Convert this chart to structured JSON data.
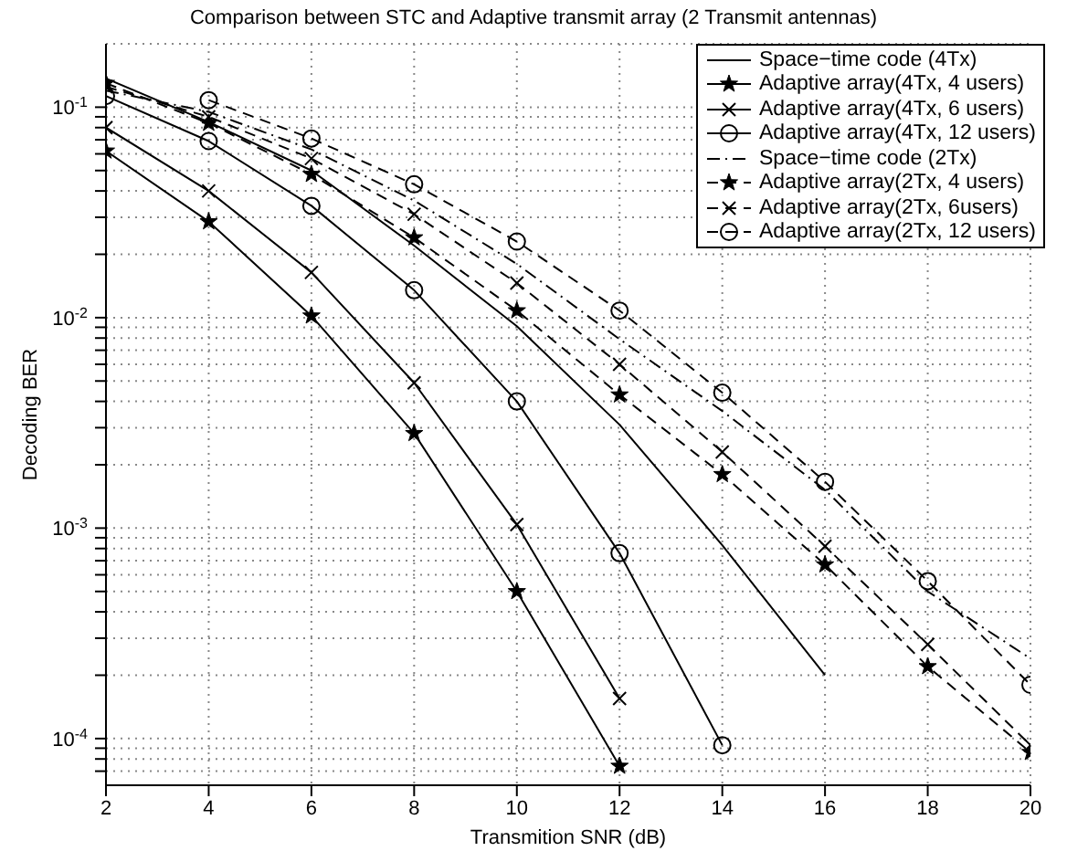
{
  "chart_data": {
    "type": "line",
    "title": "Comparison between STC and Adaptive transmit array (2 Transmit antennas)",
    "xlabel": "Transmition SNR (dB)",
    "ylabel": "Decoding BER",
    "log": "y",
    "grid": true,
    "legend": "top right",
    "x": [
      2,
      4,
      6,
      8,
      10,
      12,
      14,
      16,
      18,
      20
    ],
    "xlim": [
      2,
      20
    ],
    "xticks": [
      2,
      4,
      6,
      8,
      10,
      12,
      14,
      16,
      18,
      20
    ],
    "ylim": [
      6e-05,
      0.2
    ],
    "yticks": [
      {
        "value": 7e-05,
        "label": null
      },
      {
        "value": 8e-05,
        "label": null
      },
      {
        "value": 9e-05,
        "label": null
      },
      {
        "value": 0.0001,
        "label": "10$^{-4}$"
      },
      {
        "value": 0.0002,
        "label": null
      },
      {
        "value": 0.0003,
        "label": null
      },
      {
        "value": 0.0004,
        "label": null
      },
      {
        "value": 0.0005,
        "label": null
      },
      {
        "value": 0.0006,
        "label": null
      },
      {
        "value": 0.0007,
        "label": null
      },
      {
        "value": 0.0008,
        "label": null
      },
      {
        "value": 0.0009,
        "label": null
      },
      {
        "value": 0.001,
        "label": "10$^{-3}$"
      },
      {
        "value": 0.002,
        "label": null
      },
      {
        "value": 0.003,
        "label": null
      },
      {
        "value": 0.004,
        "label": null
      },
      {
        "value": 0.005,
        "label": null
      },
      {
        "value": 0.006,
        "label": null
      },
      {
        "value": 0.007,
        "label": null
      },
      {
        "value": 0.008,
        "label": null
      },
      {
        "value": 0.009,
        "label": null
      },
      {
        "value": 0.01,
        "label": "10$^{-2}$"
      },
      {
        "value": 0.02,
        "label": null
      },
      {
        "value": 0.03,
        "label": null
      },
      {
        "value": 0.04,
        "label": null
      },
      {
        "value": 0.05,
        "label": null
      },
      {
        "value": 0.06,
        "label": null
      },
      {
        "value": 0.07,
        "label": null
      },
      {
        "value": 0.08,
        "label": null
      },
      {
        "value": 0.09,
        "label": null
      },
      {
        "value": 0.1,
        "label": "10$^{-1}$"
      }
    ],
    "series": [
      {
        "name": "Space−time code (4Tx)",
        "color": "#000000",
        "marker": "none",
        "line_style": "solid",
        "values": [
          0.137,
          0.085,
          0.05,
          0.022,
          0.0091,
          0.0031,
          0.00083,
          0.0002,
          null,
          null
        ]
      },
      {
        "name": "Adaptive array(4Tx, 4 users)",
        "color": "#000000",
        "marker": "star",
        "line_style": "solid",
        "values": [
          0.062,
          0.0286,
          0.0102,
          0.00282,
          0.0005,
          7.4e-05,
          null,
          null,
          null,
          null
        ]
      },
      {
        "name": "Adaptive array(4Tx, 6 users)",
        "color": "#000000",
        "marker": "cross",
        "line_style": "solid",
        "values": [
          0.08,
          0.04,
          0.0164,
          0.0049,
          0.00104,
          0.000155,
          null,
          null,
          null,
          null
        ]
      },
      {
        "name": "Adaptive array(4Tx, 12 users)",
        "color": "#000000",
        "marker": "circle",
        "line_style": "solid",
        "values": [
          0.113,
          0.069,
          0.034,
          0.0135,
          0.004,
          0.00076,
          9.3e-05,
          null,
          null,
          null
        ]
      },
      {
        "name": "Space−time code (2Tx)",
        "color": "#000000",
        "marker": "none",
        "line_style": "dashdot",
        "values": [
          0.12,
          0.095,
          0.063,
          0.036,
          0.018,
          0.0079,
          0.0036,
          0.00152,
          0.0005,
          0.00024
        ]
      },
      {
        "name": "Adaptive array(2Tx, 4 users)",
        "color": "#000000",
        "marker": "star",
        "line_style": "dashed",
        "values": [
          0.13,
          0.084,
          0.048,
          0.024,
          0.0108,
          0.0043,
          0.0018,
          0.00067,
          0.00022,
          8.6e-05
        ]
      },
      {
        "name": "Adaptive array(2Tx, 6users)",
        "color": "#000000",
        "marker": "cross",
        "line_style": "dashed",
        "values": [
          0.125,
          0.09,
          0.057,
          0.031,
          0.0146,
          0.006,
          0.0023,
          0.00082,
          0.00028,
          9.3e-05
        ]
      },
      {
        "name": "Adaptive array(2Tx, 12 users)",
        "color": "#000000",
        "marker": "circle",
        "line_style": "dashed",
        "values": [
          null,
          0.108,
          0.071,
          0.043,
          0.023,
          0.0108,
          0.0044,
          0.00166,
          0.00056,
          0.00018
        ]
      }
    ]
  }
}
